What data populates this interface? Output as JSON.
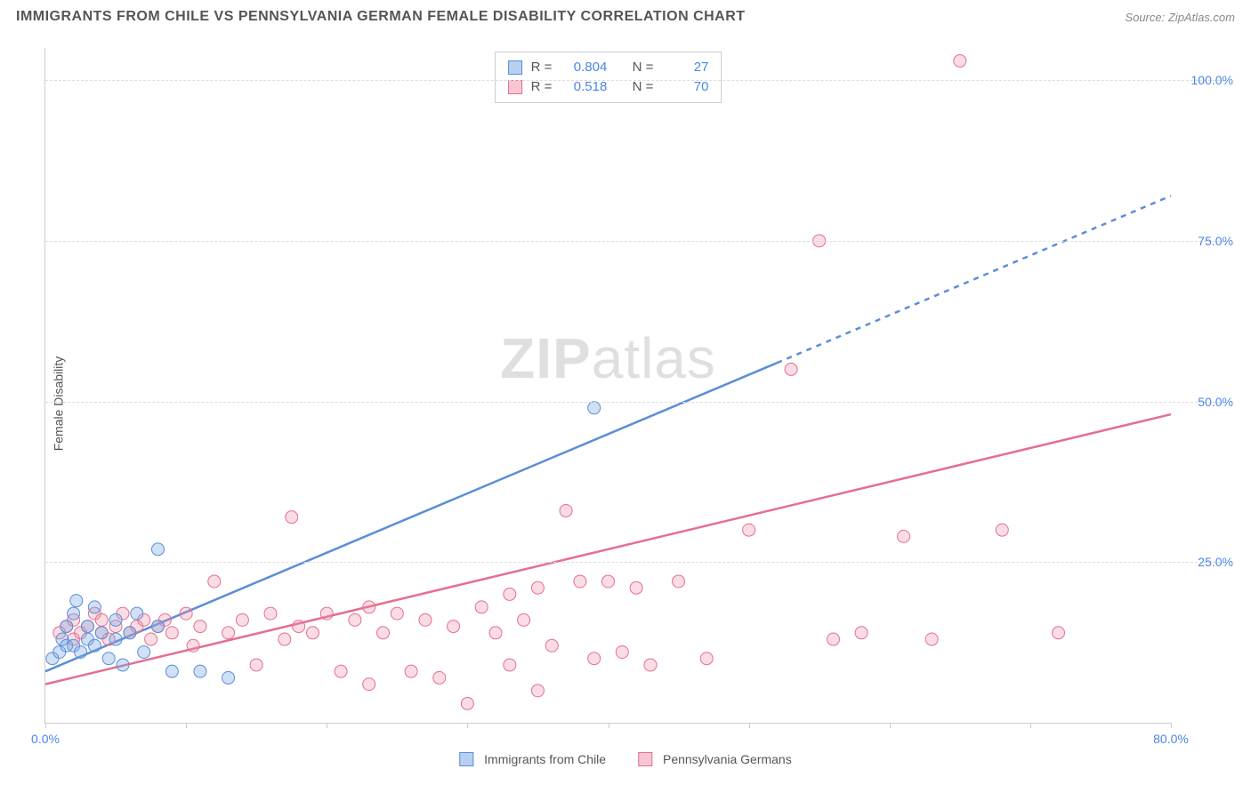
{
  "header": {
    "title": "IMMIGRANTS FROM CHILE VS PENNSYLVANIA GERMAN FEMALE DISABILITY CORRELATION CHART",
    "source_label": "Source:",
    "source_name": "ZipAtlas.com"
  },
  "ylabel": "Female Disability",
  "watermark": {
    "zip": "ZIP",
    "atlas": "atlas"
  },
  "axes": {
    "xlim": [
      0,
      80
    ],
    "ylim": [
      0,
      105
    ],
    "xticks": [
      {
        "v": 0,
        "label": "0.0%"
      },
      {
        "v": 10
      },
      {
        "v": 20
      },
      {
        "v": 30
      },
      {
        "v": 40
      },
      {
        "v": 50
      },
      {
        "v": 60
      },
      {
        "v": 70
      },
      {
        "v": 80,
        "label": "80.0%"
      }
    ],
    "yticks": [
      {
        "v": 25,
        "label": "25.0%"
      },
      {
        "v": 50,
        "label": "50.0%"
      },
      {
        "v": 75,
        "label": "75.0%"
      },
      {
        "v": 100,
        "label": "100.0%"
      }
    ]
  },
  "series": {
    "blue": {
      "name": "Immigrants from Chile",
      "fill": "rgba(120,170,230,0.35)",
      "stroke": "#5b8ed6",
      "swatch_fill": "#b8d0f0",
      "swatch_border": "#5b8ed6",
      "r_label": "R =",
      "n_label": "N =",
      "r": "0.804",
      "n": "27",
      "regression": {
        "x1": 0,
        "y1": 8,
        "x2": 52,
        "y2": 56,
        "dash_to_x": 80,
        "dash_to_y": 82
      },
      "points": [
        [
          0.5,
          10
        ],
        [
          1,
          11
        ],
        [
          1.2,
          13
        ],
        [
          1.5,
          12
        ],
        [
          1.5,
          15
        ],
        [
          2,
          12
        ],
        [
          2,
          17
        ],
        [
          2.2,
          19
        ],
        [
          2.5,
          11
        ],
        [
          3,
          13
        ],
        [
          3,
          15
        ],
        [
          3.5,
          12
        ],
        [
          3.5,
          18
        ],
        [
          4,
          14
        ],
        [
          4.5,
          10
        ],
        [
          5,
          13
        ],
        [
          5,
          16
        ],
        [
          5.5,
          9
        ],
        [
          6,
          14
        ],
        [
          6.5,
          17
        ],
        [
          7,
          11
        ],
        [
          8,
          15
        ],
        [
          8,
          27
        ],
        [
          9,
          8
        ],
        [
          11,
          8
        ],
        [
          13,
          7
        ],
        [
          39,
          49
        ]
      ]
    },
    "pink": {
      "name": "Pennsylvania Germans",
      "fill": "rgba(240,140,165,0.30)",
      "stroke": "#e56f8f",
      "swatch_fill": "#f6c7d3",
      "swatch_border": "#e56f8f",
      "r_label": "R =",
      "n_label": "N =",
      "r": "0.518",
      "n": "70",
      "regression": {
        "x1": 0,
        "y1": 6,
        "x2": 80,
        "y2": 48
      },
      "points": [
        [
          1,
          14
        ],
        [
          1.5,
          15
        ],
        [
          2,
          13
        ],
        [
          2,
          16
        ],
        [
          2.5,
          14
        ],
        [
          3,
          15
        ],
        [
          3.5,
          17
        ],
        [
          4,
          14
        ],
        [
          4,
          16
        ],
        [
          4.5,
          13
        ],
        [
          5,
          15
        ],
        [
          5.5,
          17
        ],
        [
          6,
          14
        ],
        [
          6.5,
          15
        ],
        [
          7,
          16
        ],
        [
          7.5,
          13
        ],
        [
          8,
          15
        ],
        [
          8.5,
          16
        ],
        [
          9,
          14
        ],
        [
          10,
          17
        ],
        [
          10.5,
          12
        ],
        [
          11,
          15
        ],
        [
          12,
          22
        ],
        [
          13,
          14
        ],
        [
          14,
          16
        ],
        [
          15,
          9
        ],
        [
          16,
          17
        ],
        [
          17,
          13
        ],
        [
          17.5,
          32
        ],
        [
          18,
          15
        ],
        [
          19,
          14
        ],
        [
          20,
          17
        ],
        [
          21,
          8
        ],
        [
          22,
          16
        ],
        [
          23,
          6
        ],
        [
          23,
          18
        ],
        [
          24,
          14
        ],
        [
          25,
          17
        ],
        [
          26,
          8
        ],
        [
          27,
          16
        ],
        [
          28,
          7
        ],
        [
          29,
          15
        ],
        [
          30,
          3
        ],
        [
          31,
          18
        ],
        [
          32,
          14
        ],
        [
          33,
          9
        ],
        [
          33,
          20
        ],
        [
          34,
          16
        ],
        [
          35,
          5
        ],
        [
          35,
          21
        ],
        [
          36,
          12
        ],
        [
          37,
          33
        ],
        [
          38,
          22
        ],
        [
          39,
          10
        ],
        [
          40,
          22
        ],
        [
          41,
          11
        ],
        [
          42,
          21
        ],
        [
          43,
          9
        ],
        [
          45,
          22
        ],
        [
          47,
          10
        ],
        [
          50,
          30
        ],
        [
          53,
          55
        ],
        [
          55,
          75
        ],
        [
          56,
          13
        ],
        [
          58,
          14
        ],
        [
          61,
          29
        ],
        [
          63,
          13
        ],
        [
          65,
          103
        ],
        [
          68,
          30
        ],
        [
          72,
          14
        ]
      ]
    }
  },
  "legend_bottom": {
    "items": [
      {
        "key": "blue",
        "label": "Immigrants from Chile"
      },
      {
        "key": "pink",
        "label": "Pennsylvania Germans"
      }
    ]
  },
  "marker_radius": 7
}
